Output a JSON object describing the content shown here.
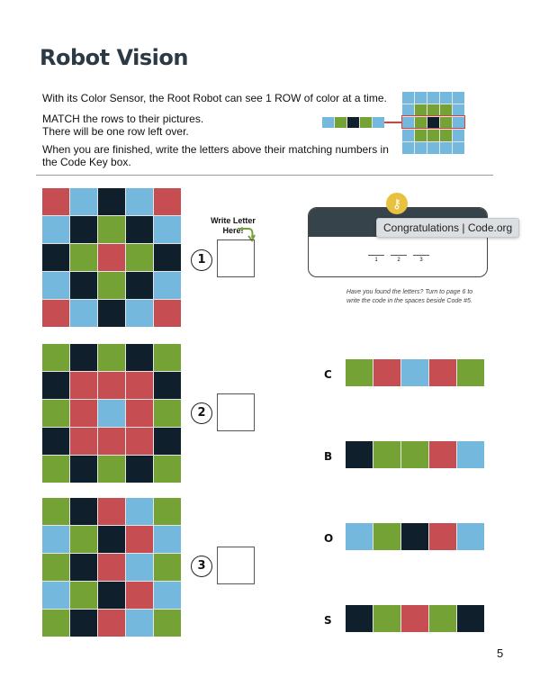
{
  "title": "Robot Vision",
  "instructions": [
    "With its Color Sensor, the Root Robot can see 1 ROW of color at a time.",
    "MATCH the rows to their pictures.",
    "There will be one row left over.",
    "When you are finished, write the letters above their matching numbers in",
    "the Code Key box."
  ],
  "colors": {
    "R": "#c64e53",
    "B": "#74b8dd",
    "K": "#0f1f2b",
    "G": "#75a234",
    "highlight": "#d9403a",
    "header": "#36434a",
    "key": "#e8c23e"
  },
  "example": {
    "strip": "BGKGB",
    "grid": [
      "BBBBB",
      "BGGGB",
      "BGKGB",
      "BGGGB",
      "BBBBB"
    ]
  },
  "pictures": [
    {
      "number": "1",
      "grid": [
        "RBKBR",
        "BKGKB",
        "KGRGK",
        "BKGKB",
        "RBKBR"
      ]
    },
    {
      "number": "2",
      "grid": [
        "GKGKG",
        "KRRRK",
        "GRBRG",
        "KRRRK",
        "GKGKG"
      ]
    },
    {
      "number": "3",
      "grid": [
        "GKRBG",
        "BGKRB",
        "GKRBG",
        "BGKRB",
        "GKRBG"
      ]
    }
  ],
  "write_label": "Write Letter Here!",
  "rows": [
    {
      "letter": "C",
      "colors": "GRBRG"
    },
    {
      "letter": "B",
      "colors": "KGGRB"
    },
    {
      "letter": "O",
      "colors": "BGKRB"
    },
    {
      "letter": "S",
      "colors": "KGRGK"
    }
  ],
  "code_key": {
    "icon": "key-icon",
    "blanks": [
      "1",
      "2",
      "3"
    ],
    "note1": "Have you found the letters? Turn to page 6 to",
    "note2": "write the code in the spaces beside Code #5."
  },
  "tooltip": "Congratulations | Code.org",
  "page_number": "5"
}
